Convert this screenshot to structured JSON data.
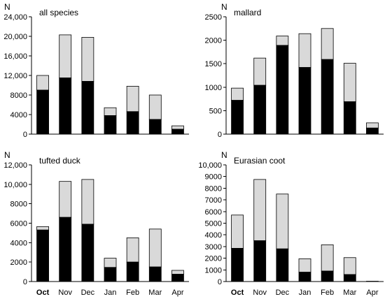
{
  "colors": {
    "lower": "#000000",
    "upper": "#d9d9d9",
    "axis": "#000000"
  },
  "chart_data": [
    {
      "type": "bar",
      "stacked": true,
      "title": "all species",
      "ylabel": "N",
      "categories": [
        "Oct",
        "Nov",
        "Dec",
        "Jan",
        "Feb",
        "Mar",
        "Apr"
      ],
      "bold_categories": [
        "Oct"
      ],
      "ylim": [
        0,
        24000
      ],
      "yticks": [
        0,
        4000,
        8000,
        12000,
        16000,
        20000,
        24000
      ],
      "ytick_labels": [
        "0",
        "4000",
        "8000",
        "12,000",
        "16,000",
        "20,000",
        "24,000"
      ],
      "lower": [
        9000,
        11500,
        10800,
        3800,
        4600,
        3000,
        1000
      ],
      "total": [
        12000,
        20300,
        19800,
        5400,
        9800,
        8000,
        1700
      ]
    },
    {
      "type": "bar",
      "stacked": true,
      "title": "mallard",
      "ylabel": "N",
      "categories": [
        "Oct",
        "Nov",
        "Dec",
        "Jan",
        "Feb",
        "Mar",
        "Apr"
      ],
      "bold_categories": [
        "Oct"
      ],
      "ylim": [
        0,
        2500
      ],
      "yticks": [
        0,
        500,
        1000,
        1500,
        2000,
        2500
      ],
      "ytick_labels": [
        "0",
        "500",
        "1000",
        "1500",
        "2000",
        "2500"
      ],
      "lower": [
        720,
        1040,
        1890,
        1420,
        1590,
        690,
        130
      ],
      "total": [
        980,
        1620,
        2090,
        2140,
        2250,
        1510,
        240
      ]
    },
    {
      "type": "bar",
      "stacked": true,
      "title": "tufted duck",
      "ylabel": "N",
      "categories": [
        "Oct",
        "Nov",
        "Dec",
        "Jan",
        "Feb",
        "Mar",
        "Apr"
      ],
      "bold_categories": [
        "Oct"
      ],
      "ylim": [
        0,
        12000
      ],
      "yticks": [
        0,
        2000,
        4000,
        6000,
        8000,
        10000,
        12000
      ],
      "ytick_labels": [
        "0",
        "2000",
        "4000",
        "6000",
        "8000",
        "10,000",
        "12,000"
      ],
      "lower": [
        5300,
        6600,
        5900,
        1450,
        2000,
        1500,
        750
      ],
      "total": [
        5650,
        10300,
        10500,
        2400,
        4500,
        5400,
        1150
      ]
    },
    {
      "type": "bar",
      "stacked": true,
      "title": "Eurasian coot",
      "ylabel": "N",
      "categories": [
        "Oct",
        "Nov",
        "Dec",
        "Jan",
        "Feb",
        "Mar",
        "Apr"
      ],
      "bold_categories": [
        "Oct"
      ],
      "ylim": [
        0,
        10000
      ],
      "yticks": [
        0,
        1000,
        2000,
        3000,
        4000,
        5000,
        6000,
        7000,
        8000,
        9000,
        10000
      ],
      "ytick_labels": [
        "0",
        "1000",
        "2000",
        "3000",
        "4000",
        "5000",
        "6000",
        "7000",
        "8000",
        "9000",
        "10,000"
      ],
      "lower": [
        2850,
        3500,
        2800,
        800,
        900,
        600,
        0
      ],
      "total": [
        5700,
        8750,
        7500,
        1950,
        3150,
        2050,
        30
      ]
    }
  ]
}
